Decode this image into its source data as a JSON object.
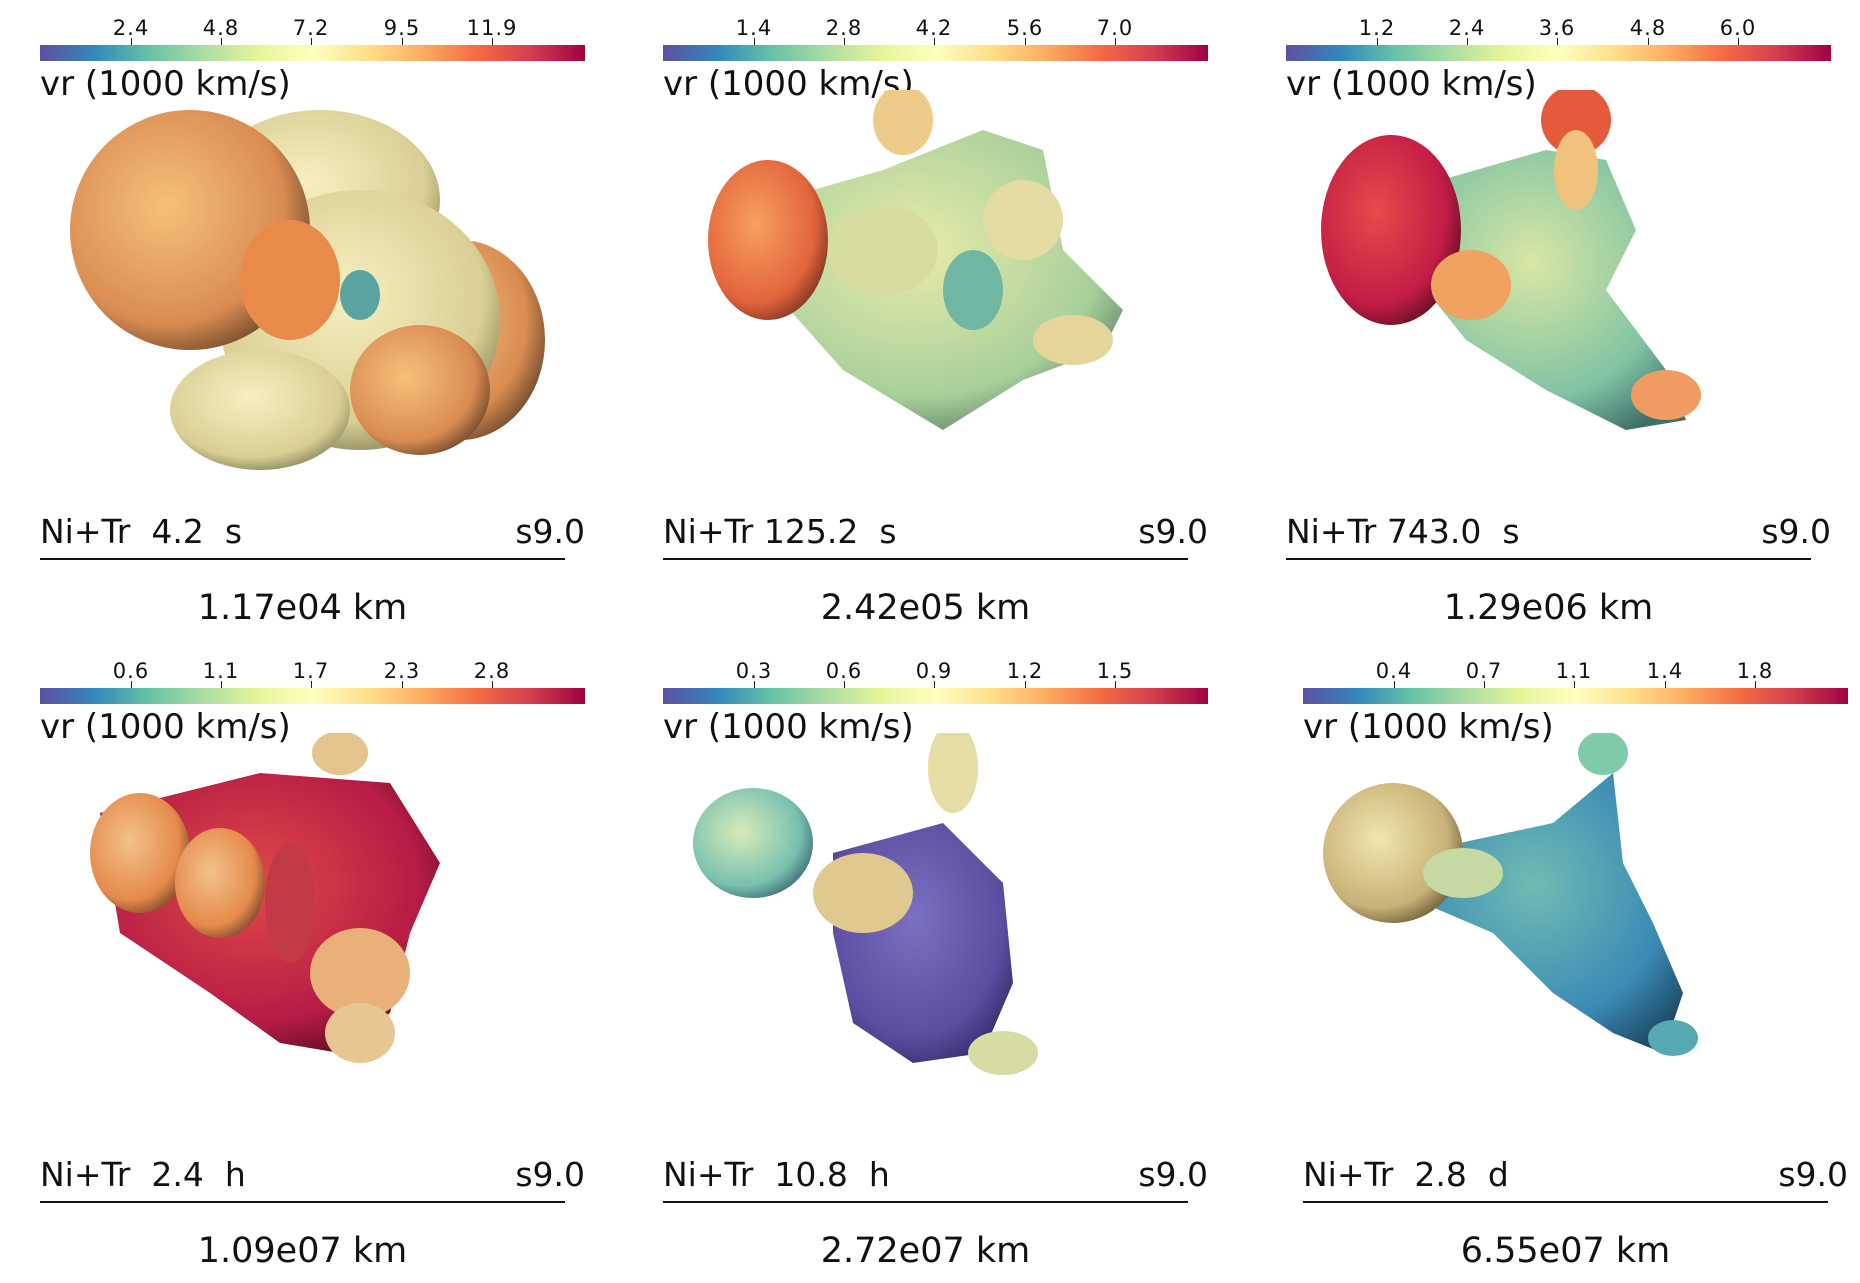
{
  "colormap": [
    "#5e4fa2",
    "#3288bd",
    "#66c2a5",
    "#abdda4",
    "#e6f598",
    "#ffffbf",
    "#fee08b",
    "#fdae61",
    "#f46d43",
    "#d53e4f",
    "#9e0142"
  ],
  "panels": [
    {
      "ticks": [
        "2.4",
        "4.8",
        "7.2",
        "9.5",
        "11.9"
      ],
      "cbar_label": "vr (1000 km/s)",
      "model": "Ni+Tr",
      "time": "4.2",
      "unit": "s",
      "tag": "s9.0",
      "scale": "1.17e04 km"
    },
    {
      "ticks": [
        "1.4",
        "2.8",
        "4.2",
        "5.6",
        "7.0"
      ],
      "cbar_label": "vr (1000 km/s)",
      "model": "Ni+Tr",
      "time": "125.2",
      "unit": "s",
      "tag": "s9.0",
      "scale": "2.42e05 km"
    },
    {
      "ticks": [
        "1.2",
        "2.4",
        "3.6",
        "4.8",
        "6.0"
      ],
      "cbar_label": "vr (1000 km/s)",
      "model": "Ni+Tr",
      "time": "743.0",
      "unit": "s",
      "tag": "s9.0",
      "scale": "1.29e06 km"
    },
    {
      "ticks": [
        "0.6",
        "1.1",
        "1.7",
        "2.3",
        "2.8"
      ],
      "cbar_label": "vr (1000 km/s)",
      "model": "Ni+Tr",
      "time": "2.4",
      "unit": "h",
      "tag": "s9.0",
      "scale": "1.09e07 km"
    },
    {
      "ticks": [
        "0.3",
        "0.6",
        "0.9",
        "1.2",
        "1.5"
      ],
      "cbar_label": "vr (1000 km/s)",
      "model": "Ni+Tr",
      "time": "10.8",
      "unit": "h",
      "tag": "s9.0",
      "scale": "2.72e07 km"
    },
    {
      "ticks": [
        "0.4",
        "0.7",
        "1.1",
        "1.4",
        "1.8"
      ],
      "cbar_label": "vr (1000 km/s)",
      "model": "Ni+Tr",
      "time": "2.8",
      "unit": "d",
      "tag": "s9.0",
      "scale": "6.55e07 km"
    }
  ]
}
